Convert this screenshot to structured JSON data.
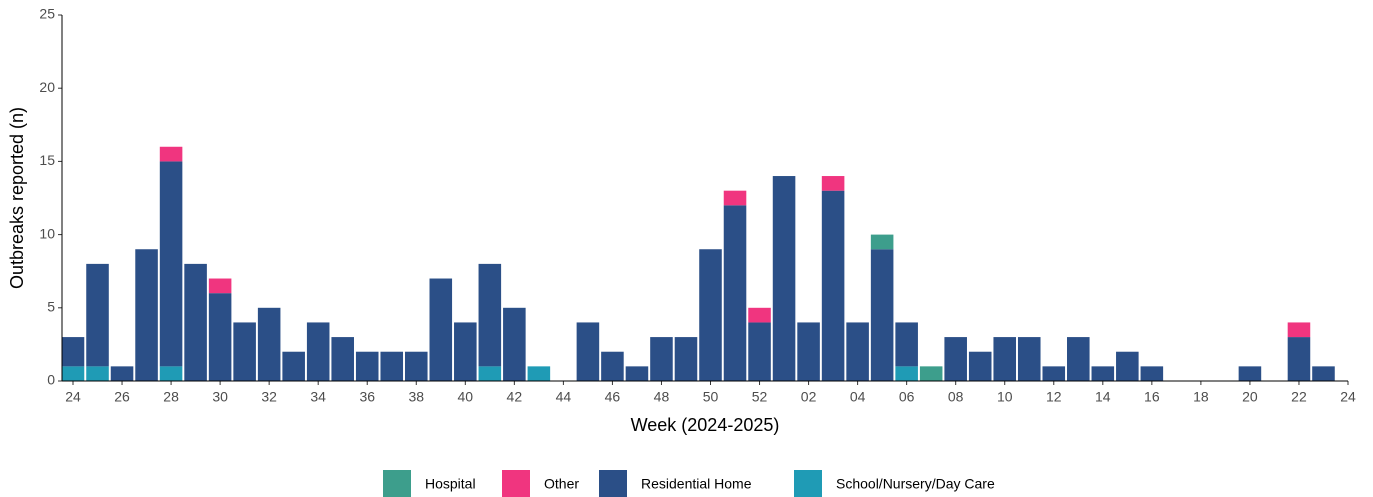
{
  "chart_data": {
    "type": "stacked_bar",
    "x_label": "Week (2024-2025)",
    "y_label": "Outbreaks reported (n)",
    "categories": [
      "24",
      null,
      "26",
      null,
      "28",
      null,
      "30",
      null,
      "32",
      null,
      "34",
      null,
      "36",
      null,
      "38",
      null,
      "40",
      null,
      "42",
      null,
      "44",
      null,
      "46",
      null,
      "48",
      null,
      "50",
      null,
      "52",
      null,
      "02",
      null,
      "04",
      null,
      "06",
      null,
      "08",
      null,
      "10",
      null,
      "12",
      null,
      "14",
      null,
      "16",
      null,
      "18",
      null,
      "20",
      null,
      "22",
      null,
      "24"
    ],
    "series": [
      {
        "name": "Hospital",
        "color": "#3d9e8c",
        "values": [
          0,
          0,
          0,
          0,
          0,
          0,
          0,
          0,
          0,
          0,
          0,
          0,
          0,
          0,
          0,
          0,
          0,
          0,
          0,
          0,
          0,
          0,
          0,
          0,
          0,
          0,
          0,
          0,
          0,
          0,
          0,
          0,
          0,
          1,
          0,
          1,
          0,
          0,
          0,
          0,
          0,
          0,
          0,
          0,
          0,
          0,
          0,
          0,
          0,
          0,
          0,
          0,
          0
        ]
      },
      {
        "name": "Other",
        "color": "#f0357f",
        "values": [
          0,
          0,
          0,
          0,
          1,
          0,
          1,
          0,
          0,
          0,
          0,
          0,
          0,
          0,
          0,
          0,
          0,
          0,
          0,
          0,
          0,
          0,
          0,
          0,
          0,
          0,
          0,
          1,
          1,
          0,
          0,
          1,
          0,
          0,
          0,
          0,
          0,
          0,
          0,
          0,
          0,
          0,
          0,
          0,
          0,
          0,
          0,
          0,
          0,
          0,
          1,
          0,
          0
        ]
      },
      {
        "name": "Residential Home",
        "color": "#2b4f87",
        "values": [
          2,
          7,
          1,
          9,
          14,
          8,
          6,
          4,
          5,
          2,
          4,
          3,
          2,
          2,
          2,
          7,
          4,
          7,
          5,
          0,
          0,
          4,
          2,
          1,
          3,
          3,
          9,
          12,
          4,
          14,
          4,
          13,
          4,
          9,
          3,
          0,
          3,
          2,
          3,
          3,
          1,
          3,
          1,
          2,
          1,
          0,
          0,
          0,
          1,
          0,
          3,
          1,
          0
        ]
      },
      {
        "name": "School/Nursery/Day Care",
        "color": "#1f9bb5",
        "values": [
          1,
          1,
          0,
          0,
          1,
          0,
          0,
          0,
          0,
          0,
          0,
          0,
          0,
          0,
          0,
          0,
          0,
          1,
          0,
          1,
          0,
          0,
          0,
          0,
          0,
          0,
          0,
          0,
          0,
          0,
          0,
          0,
          0,
          0,
          1,
          0,
          0,
          0,
          0,
          0,
          0,
          0,
          0,
          0,
          0,
          0,
          0,
          0,
          0,
          0,
          0,
          0,
          0
        ]
      }
    ],
    "ylim": [
      0,
      25
    ],
    "yticks": [
      0,
      5,
      10,
      15,
      20,
      25
    ]
  }
}
